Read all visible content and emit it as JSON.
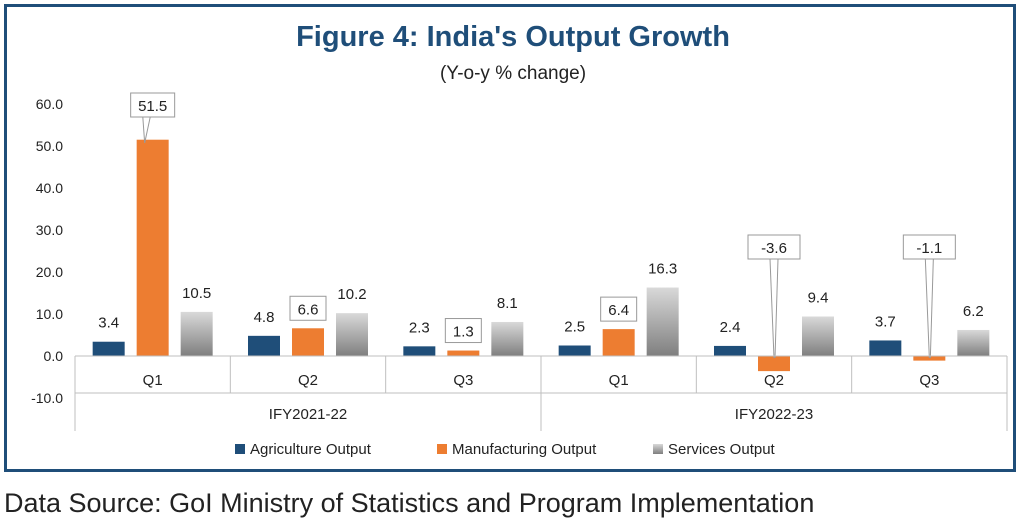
{
  "title": "Figure 4: India's Output Growth",
  "subtitle": "(Y-o-y % change)",
  "source": "Data Source: GoI Ministry of Statistics and Program Implementation",
  "colors": {
    "frame": "#1f4e79",
    "title": "#1f4e79",
    "agriculture": "#1f4e79",
    "manufacturing": "#ed7d31",
    "services": "#a6a6a6"
  },
  "chart_data": {
    "type": "bar",
    "title": "Figure 4: India's Output Growth",
    "subtitle": "(Y-o-y % change)",
    "groups": [
      {
        "label": "IFY2021-22",
        "categories": [
          "Q1",
          "Q2",
          "Q3"
        ]
      },
      {
        "label": "IFY2022-23",
        "categories": [
          "Q1",
          "Q2",
          "Q3"
        ]
      }
    ],
    "categories": [
      "Q1",
      "Q2",
      "Q3",
      "Q1",
      "Q2",
      "Q3"
    ],
    "series": [
      {
        "name": "Agriculture Output",
        "values": [
          3.4,
          4.8,
          2.3,
          2.5,
          2.4,
          3.7
        ]
      },
      {
        "name": "Manufacturing Output",
        "values": [
          51.5,
          6.6,
          1.3,
          6.4,
          -3.6,
          -1.1
        ]
      },
      {
        "name": "Services Output",
        "values": [
          10.5,
          10.2,
          8.1,
          16.3,
          9.4,
          6.2
        ]
      }
    ],
    "callout_series": "Manufacturing Output",
    "yticks": [
      "60.0",
      "50.0",
      "40.0",
      "30.0",
      "20.0",
      "10.0",
      "0.0",
      "-10.0"
    ],
    "ylim": [
      -10,
      60
    ],
    "grid": false,
    "legend_position": "bottom"
  }
}
